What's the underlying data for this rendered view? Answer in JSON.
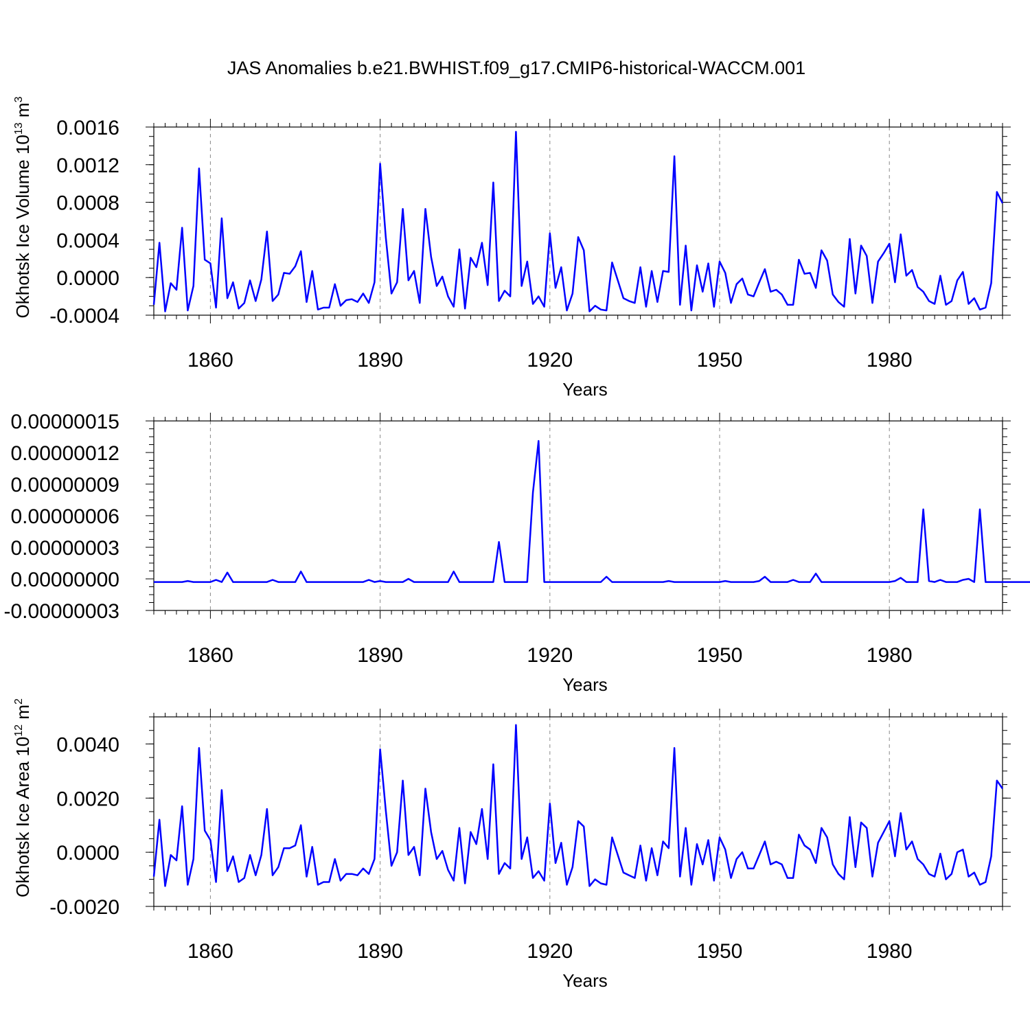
{
  "title": "JAS Anomalies b.e21.BWHIST.f09_g17.CMIP6-historical-WACCM.001",
  "colors": {
    "line": "#0000ff",
    "axes": "#000000",
    "grid": "#888888"
  },
  "chart_data": [
    {
      "type": "line",
      "xlabel": "Years",
      "ylabel_main": "Okhotsk Ice Volume 10",
      "ylabel_sup": "13",
      "ylabel_unit": " m",
      "ylabel_unit_sup": "3",
      "xlim": [
        1850,
        2000
      ],
      "ylim": [
        -0.0004,
        0.0016
      ],
      "xticks": [
        1860,
        1890,
        1920,
        1950,
        1980
      ],
      "xtick_labels": [
        "1860",
        "1890",
        "1920",
        "1950",
        "1980"
      ],
      "yticks": [
        -0.0004,
        0.0,
        0.0004,
        0.0008,
        0.0012,
        0.0016
      ],
      "ytick_labels": [
        "-0.0004",
        "0.0000",
        "0.0004",
        "0.0008",
        "0.0012",
        "0.0016"
      ],
      "grid": "dashed vertical at x ticks",
      "series": [
        {
          "x_start": 1850,
          "values": [
            -0.00029,
            0.00037,
            -0.00036,
            -6e-05,
            -0.00013,
            0.00053,
            -0.00035,
            -9e-05,
            0.00116,
            0.00019,
            0.00015,
            -0.00032,
            0.00063,
            -0.00022,
            -5e-05,
            -0.00033,
            -0.00027,
            -3e-05,
            -0.00025,
            -2e-05,
            0.00049,
            -0.00025,
            -0.00018,
            5e-05,
            4e-05,
            0.00012,
            0.00028,
            -0.00026,
            7e-05,
            -0.00034,
            -0.00032,
            -0.00032,
            -7e-05,
            -0.0003,
            -0.00024,
            -0.00023,
            -0.00026,
            -0.00017,
            -0.00027,
            -5e-05,
            0.00121,
            0.00043,
            -0.00017,
            -5e-05,
            0.00073,
            -3e-05,
            7e-05,
            -0.00027,
            0.00073,
            0.00022,
            -9e-05,
            1e-05,
            -0.0002,
            -0.00031,
            0.0003,
            -0.00033,
            0.00021,
            0.00011,
            0.00037,
            -8e-05,
            0.00101,
            -0.00025,
            -0.00014,
            -0.0002,
            0.00155,
            -9e-05,
            0.00017,
            -0.00028,
            -0.0002,
            -0.00031,
            0.00047,
            -0.00011,
            0.00011,
            -0.00035,
            -0.00017,
            0.00043,
            0.00029,
            -0.00036,
            -0.0003,
            -0.00034,
            -0.00035,
            0.00016,
            -3e-05,
            -0.00022,
            -0.00025,
            -0.00027,
            0.00011,
            -0.00031,
            7e-05,
            -0.00026,
            7e-05,
            6e-05,
            0.00129,
            -0.00029,
            0.00034,
            -0.00035,
            0.00013,
            -0.00015,
            0.00015,
            -0.00031,
            0.00017,
            5e-05,
            -0.00027,
            -7e-05,
            -1e-05,
            -0.00018,
            -0.0002,
            -5e-05,
            9e-05,
            -0.00015,
            -0.00013,
            -0.00018,
            -0.00029,
            -0.00029,
            0.00019,
            4e-05,
            5e-05,
            -0.00011,
            0.00029,
            0.00018,
            -0.00018,
            -0.00026,
            -0.00031,
            0.00041,
            -0.00017,
            0.00034,
            0.00023,
            -0.00027,
            0.00017,
            0.00026,
            0.00036,
            -5e-05,
            0.00046,
            2e-05,
            8e-05,
            -0.0001,
            -0.00015,
            -0.00025,
            -0.00028,
            2e-05,
            -0.00029,
            -0.00025,
            -3e-05,
            6e-05,
            -0.00028,
            -0.00022,
            -0.00034,
            -0.00032,
            -6e-05,
            0.00091,
            0.00079
          ]
        }
      ]
    },
    {
      "type": "line",
      "xlabel": "Years",
      "ylabel_main": "",
      "xlim": [
        1850,
        2000
      ],
      "ylim": [
        -3e-08,
        1.5e-07
      ],
      "xticks": [
        1860,
        1890,
        1920,
        1950,
        1980
      ],
      "xtick_labels": [
        "1860",
        "1890",
        "1920",
        "1950",
        "1980"
      ],
      "yticks": [
        -3e-08,
        0.0,
        3e-08,
        6e-08,
        9e-08,
        1.2e-07,
        1.5e-07
      ],
      "ytick_labels": [
        "-0.00000003",
        "0.00000000",
        "0.00000003",
        "0.00000006",
        "0.00000009",
        "0.00000012",
        "0.00000015"
      ],
      "grid": "dashed vertical at x ticks",
      "series": [
        {
          "x_start": 1850,
          "values": [
            -3e-09,
            -3e-09,
            -3e-09,
            -3e-09,
            -3e-09,
            -3e-09,
            -2e-09,
            -3e-09,
            -3e-09,
            -3e-09,
            -3e-09,
            -1e-09,
            -3e-09,
            6e-09,
            -3e-09,
            -3e-09,
            -3e-09,
            -3e-09,
            -3e-09,
            -3e-09,
            -3e-09,
            -1e-09,
            -3e-09,
            -3e-09,
            -3e-09,
            -3e-09,
            7e-09,
            -3e-09,
            -3e-09,
            -3e-09,
            -3e-09,
            -3e-09,
            -3e-09,
            -3e-09,
            -3e-09,
            -3e-09,
            -3e-09,
            -3e-09,
            -1e-09,
            -3e-09,
            -2e-09,
            -3e-09,
            -3e-09,
            -3e-09,
            -3e-09,
            0.0,
            -3e-09,
            -3e-09,
            -3e-09,
            -3e-09,
            -3e-09,
            -3e-09,
            -3e-09,
            7e-09,
            -3e-09,
            -3e-09,
            -3e-09,
            -3e-09,
            -3e-09,
            -3e-09,
            -3e-09,
            3.5e-08,
            -3e-09,
            -3e-09,
            -3e-09,
            -3e-09,
            -3e-09,
            8.2e-08,
            1.31e-07,
            -3e-09,
            -3e-09,
            -3e-09,
            -3e-09,
            -3e-09,
            -3e-09,
            -3e-09,
            -3e-09,
            -3e-09,
            -3e-09,
            -3e-09,
            2e-09,
            -3e-09,
            -3e-09,
            -3e-09,
            -3e-09,
            -3e-09,
            -3e-09,
            -3e-09,
            -3e-09,
            -3e-09,
            -3e-09,
            -2e-09,
            -3e-09,
            -3e-09,
            -3e-09,
            -3e-09,
            -3e-09,
            -3e-09,
            -3e-09,
            -3e-09,
            -3e-09,
            -2e-09,
            -3e-09,
            -3e-09,
            -3e-09,
            -3e-09,
            -3e-09,
            -2e-09,
            2e-09,
            -3e-09,
            -3e-09,
            -3e-09,
            -3e-09,
            -1e-09,
            -3e-09,
            -3e-09,
            -3e-09,
            5e-09,
            -3e-09,
            -3e-09,
            -3e-09,
            -3e-09,
            -3e-09,
            -3e-09,
            -3e-09,
            -3e-09,
            -3e-09,
            -3e-09,
            -3e-09,
            -3e-09,
            -3e-09,
            -2e-09,
            1e-09,
            -3e-09,
            -3e-09,
            -3e-09,
            6.6e-08,
            -2e-09,
            -3e-09,
            -1e-09,
            -3e-09,
            -3e-09,
            -3e-09,
            -1e-09,
            0.0,
            -3e-09,
            6.6e-08,
            -3e-09,
            -3e-09,
            -3e-09,
            -3e-09,
            -3e-09,
            -3e-09,
            -3e-09,
            -3e-09,
            -3e-09,
            -3e-09,
            -3e-09,
            -3e-09,
            -3e-09,
            -3e-09,
            -3e-09,
            -3e-09
          ]
        }
      ]
    },
    {
      "type": "line",
      "xlabel": "Years",
      "ylabel_main": "Okhotsk Ice Area 10",
      "ylabel_sup": "12",
      "ylabel_unit": " m",
      "ylabel_unit_sup": "2",
      "xlim": [
        1850,
        2000
      ],
      "ylim": [
        -0.002,
        0.005
      ],
      "xticks": [
        1860,
        1890,
        1920,
        1950,
        1980
      ],
      "xtick_labels": [
        "1860",
        "1890",
        "1920",
        "1950",
        "1980"
      ],
      "yticks": [
        -0.002,
        0.0,
        0.002,
        0.004
      ],
      "ytick_labels": [
        "-0.0020",
        "0.0000",
        "0.0020",
        "0.0040"
      ],
      "grid": "dashed vertical at x ticks",
      "series": [
        {
          "x_start": 1850,
          "values": [
            -0.0009,
            0.0012,
            -0.00125,
            -0.0001,
            -0.0003,
            0.0017,
            -0.0012,
            -0.00025,
            0.00385,
            0.0008,
            0.00045,
            -0.0011,
            0.0023,
            -0.0007,
            -0.00015,
            -0.0011,
            -0.00095,
            -0.0001,
            -0.00085,
            -0.0001,
            0.0016,
            -0.00085,
            -0.00055,
            0.00015,
            0.00015,
            0.00025,
            0.001,
            -0.0009,
            0.0002,
            -0.0012,
            -0.0011,
            -0.0011,
            -0.00025,
            -0.00105,
            -0.0008,
            -0.0008,
            -0.00085,
            -0.0006,
            -0.0008,
            -0.00025,
            0.0038,
            0.00155,
            -0.0005,
            0.0,
            0.00265,
            -0.0001,
            0.0002,
            -0.00085,
            0.00235,
            0.00075,
            -0.00025,
            5e-05,
            -0.00065,
            -0.00105,
            0.0009,
            -0.00115,
            0.00075,
            0.0003,
            0.0016,
            -0.00025,
            0.00325,
            -0.0008,
            -0.0004,
            -0.0006,
            0.0047,
            -0.00025,
            0.00055,
            -0.00095,
            -0.0007,
            -0.00105,
            0.0018,
            -0.0004,
            0.00035,
            -0.0012,
            -0.00055,
            0.00115,
            0.00095,
            -0.00125,
            -0.001,
            -0.00115,
            -0.0012,
            0.00055,
            -0.0001,
            -0.00075,
            -0.00085,
            -0.00095,
            0.00025,
            -0.00105,
            0.00015,
            -0.00085,
            0.0004,
            0.00015,
            0.00385,
            -0.0009,
            0.0009,
            -0.0012,
            0.0003,
            -0.00045,
            0.00045,
            -0.00105,
            0.00055,
            0.0001,
            -0.00095,
            -0.00025,
            0.0,
            -0.0006,
            -0.0006,
            -0.0001,
            0.0004,
            -0.00045,
            -0.00035,
            -0.00045,
            -0.00095,
            -0.00095,
            0.00065,
            0.00025,
            0.0001,
            -0.0004,
            0.0009,
            0.00055,
            -0.00045,
            -0.0008,
            -0.001,
            0.0013,
            -0.00055,
            0.0011,
            0.0009,
            -0.0009,
            0.00035,
            0.00075,
            0.00115,
            -0.00015,
            0.00145,
            0.0001,
            0.0004,
            -0.00025,
            -0.00045,
            -0.0008,
            -0.0009,
            -5e-05,
            -0.001,
            -0.0008,
            0.0,
            0.0001,
            -0.0009,
            -0.00075,
            -0.0012,
            -0.0011,
            -0.00015,
            0.00265,
            0.00235
          ]
        }
      ]
    }
  ]
}
